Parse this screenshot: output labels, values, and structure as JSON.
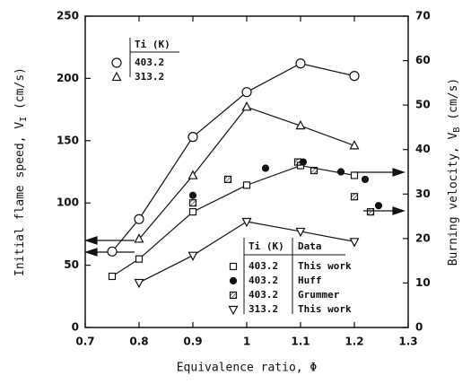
{
  "chart_data": {
    "type": "line",
    "xlabel": "Equivalence ratio, Φ",
    "ylabel": {
      "text": "Initial flame speed, V",
      "sub": "I",
      "unit": " (cm/s)"
    },
    "y2label": {
      "text": "Burning velocity, V",
      "sub": "B",
      "unit": " (cm/s)"
    },
    "xlim": [
      0.7,
      1.3
    ],
    "xticks": [
      0.7,
      0.8,
      0.9,
      1.0,
      1.1,
      1.2,
      1.3
    ],
    "ylim": [
      0,
      250
    ],
    "yticks": [
      0,
      50,
      100,
      150,
      200,
      250
    ],
    "y2lim": [
      0,
      70
    ],
    "y2ticks": [
      0,
      10,
      20,
      30,
      40,
      50,
      60,
      70
    ],
    "legend_headers": {
      "upper": [
        "Ti (K)"
      ],
      "lower": [
        "Ti (K)",
        "Data"
      ]
    },
    "series": [
      {
        "name": "403.2",
        "legend": "upper",
        "marker": "circle",
        "line": true,
        "color": "#111",
        "x": [
          0.75,
          0.8,
          0.9,
          1.0,
          1.1,
          1.2
        ],
        "values": [
          61,
          87,
          153,
          189,
          212,
          202
        ]
      },
      {
        "name": "313.2",
        "legend": "upper",
        "marker": "triangle",
        "line": true,
        "color": "#111",
        "x": [
          0.8,
          0.9,
          1.0,
          1.1,
          1.2
        ],
        "values": [
          71,
          122,
          177,
          162,
          146
        ]
      },
      {
        "name": "This work",
        "ti": "403.2",
        "legend": "lower",
        "axis": "y2",
        "marker": "square",
        "line": true,
        "color": "#111",
        "x": [
          0.75,
          0.8,
          0.9,
          1.0,
          1.1,
          1.2
        ],
        "values": [
          11.5,
          15.4,
          26,
          32,
          36.4,
          34.2
        ]
      },
      {
        "name": "Huff",
        "ti": "403.2",
        "legend": "lower",
        "axis": "y2",
        "marker": "dot",
        "line": false,
        "color": "#111",
        "x": [
          0.9,
          1.035,
          1.105,
          1.175,
          1.22,
          1.245
        ],
        "values": [
          29.7,
          35.8,
          37.2,
          35,
          33.3,
          27.4
        ]
      },
      {
        "name": "Grummer",
        "ti": "403.2",
        "legend": "lower",
        "axis": "y2",
        "marker": "xsquare",
        "line": false,
        "color": "#111",
        "x": [
          0.9,
          0.965,
          1.095,
          1.125,
          1.2,
          1.23
        ],
        "values": [
          28,
          33.3,
          37.2,
          35.3,
          29.4,
          26
        ]
      },
      {
        "name": "This work",
        "ti": "313.2",
        "legend": "lower",
        "axis": "y2",
        "marker": "tridown",
        "line": true,
        "color": "#111",
        "x": [
          0.8,
          0.9,
          1.0,
          1.1,
          1.2
        ],
        "values": [
          10.1,
          16.2,
          23.8,
          21.6,
          19.3
        ]
      }
    ]
  }
}
